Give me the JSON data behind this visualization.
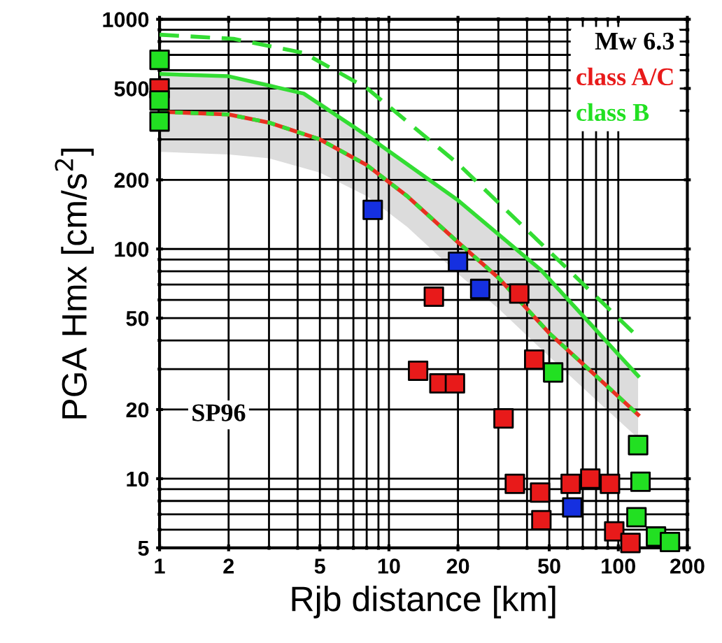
{
  "chart_data": {
    "type": "scatter",
    "xlabel": "Rjb distance [km]",
    "ylabel": "PGA Hmx [cm/s$^{2}$]",
    "log": "xy",
    "xlim": [
      1,
      200
    ],
    "ylim": [
      5,
      1000
    ],
    "xticks": [
      1,
      2,
      5,
      10,
      20,
      50,
      100,
      200
    ],
    "yticks": [
      5,
      10,
      20,
      50,
      100,
      200,
      500,
      1000
    ],
    "grid": true,
    "legend": "top right",
    "legend_title": "Mw 6.3",
    "marker": "square",
    "annotations": [
      "SP96"
    ],
    "series": [
      {
        "type": "line",
        "marker": "none",
        "color": "#e83020",
        "line_style": "solid",
        "x": [
          1,
          2,
          3,
          5,
          8,
          12,
          20,
          30,
          50,
          80,
          122
        ],
        "values": [
          396,
          385,
          355,
          300,
          232,
          170,
          107,
          75,
          43,
          28,
          19
        ],
        "lower": [
          265,
          258,
          248,
          215,
          170,
          125,
          78,
          55,
          34,
          22,
          15
        ],
        "upper": [
          578,
          565,
          530,
          440,
          315,
          240,
          160,
          118,
          75,
          46,
          28
        ]
      },
      {
        "type": "line",
        "marker": "none",
        "color": "#33dd33",
        "line_style": "dotted",
        "x": [
          1,
          2,
          3,
          5,
          8,
          12,
          20,
          30,
          50,
          80,
          122
        ],
        "values": [
          396,
          385,
          355,
          300,
          232,
          170,
          107,
          75,
          43,
          28,
          19
        ]
      },
      {
        "type": "line",
        "marker": "none",
        "color": "#33dd33",
        "line_style": "solid",
        "x": [
          1,
          2,
          4.25,
          8,
          20,
          46,
          122
        ],
        "values": [
          578,
          565,
          475,
          312,
          163,
          81,
          28
        ]
      },
      {
        "type": "line",
        "marker": "none",
        "color": "#33dd33",
        "line_style": "dashed",
        "x": [
          1,
          2.1,
          4.25,
          8,
          20,
          64,
          120
        ],
        "values": [
          857,
          822,
          714,
          502,
          235,
          77,
          42
        ]
      },
      {
        "color": "#1530e0",
        "x": [
          8.5,
          20,
          25,
          63
        ],
        "values": [
          148,
          88,
          67,
          7.5
        ]
      },
      {
        "name": "class A/C",
        "color": "#e81a1a",
        "x": [
          1,
          15.7,
          37,
          43,
          13.4,
          16.6,
          19.4,
          31.6,
          35.4,
          45.6,
          46.2,
          62,
          75.5,
          92,
          96,
          113
        ],
        "values": [
          500,
          62,
          64,
          33,
          29.5,
          26,
          26,
          18.3,
          9.5,
          8.7,
          6.6,
          9.5,
          10,
          9.5,
          5.9,
          5.25
        ]
      },
      {
        "name": "class B",
        "color": "#22e022",
        "x": [
          1,
          1,
          1,
          52,
          122,
          125,
          120,
          146,
          168
        ],
        "values": [
          666,
          443,
          359,
          29,
          14,
          9.7,
          6.8,
          5.6,
          5.3
        ]
      }
    ]
  }
}
